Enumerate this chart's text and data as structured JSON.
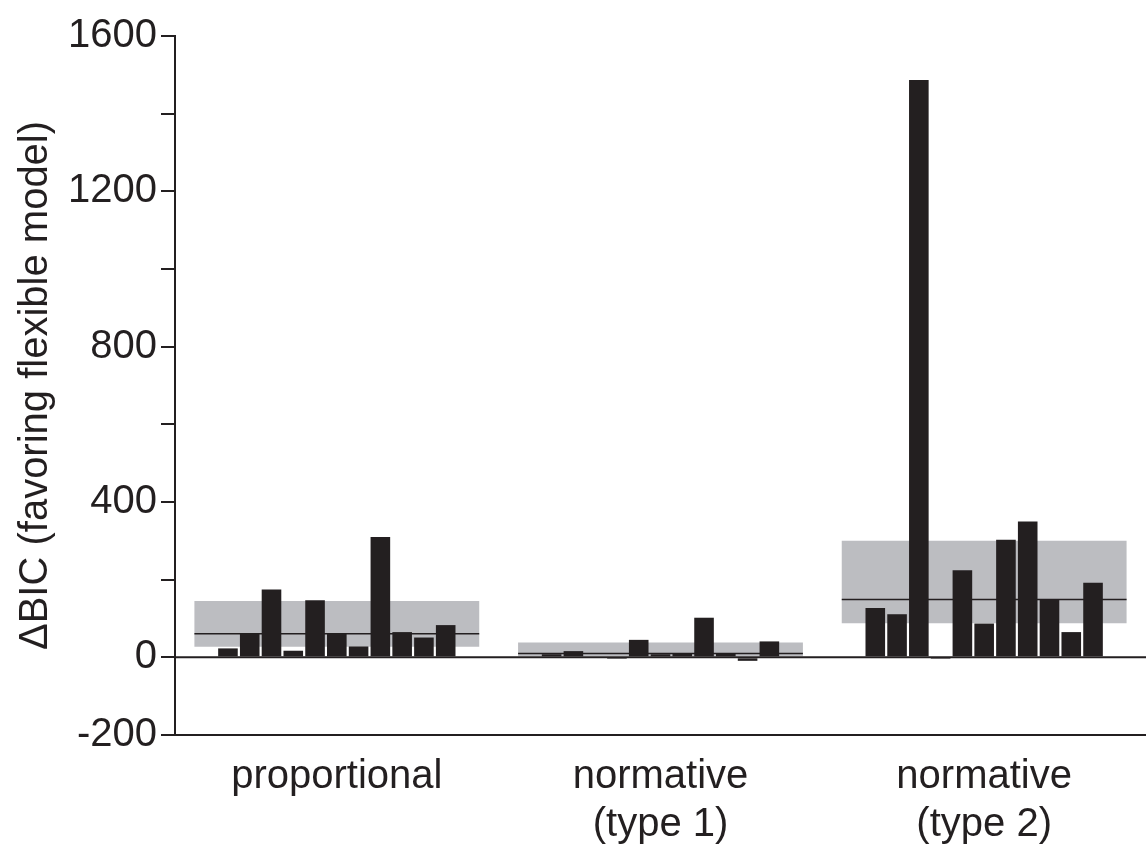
{
  "chart_data": {
    "type": "bar",
    "ylabel": "ΔBIC (favoring flexible model)",
    "categories": [
      "proportional",
      "normative\n(type 1)",
      "normative\n(type 2)"
    ],
    "series": [
      {
        "type": "box",
        "color": "#bcbdc1",
        "boxes": [
          {
            "low": 27,
            "q1": 27,
            "median": 61,
            "q3": 145,
            "high": 145
          },
          {
            "low": 3,
            "q1": 3,
            "median": 10,
            "q3": 38,
            "high": 38
          },
          {
            "low": 88,
            "q1": 88,
            "median": 149,
            "q3": 300,
            "high": 300
          }
        ]
      },
      {
        "color": "#231f20",
        "values": [
          23,
          8,
          127
        ]
      },
      {
        "color": "#231f20",
        "values": [
          62,
          16,
          111
        ]
      },
      {
        "color": "#231f20",
        "values": [
          175,
          null,
          1487
        ]
      },
      {
        "color": "#231f20",
        "values": [
          17,
          -4,
          -4
        ]
      },
      {
        "color": "#231f20",
        "values": [
          147,
          45,
          224
        ]
      },
      {
        "color": "#231f20",
        "values": [
          62,
          8,
          87
        ]
      },
      {
        "color": "#231f20",
        "values": [
          28,
          10,
          303
        ]
      },
      {
        "color": "#231f20",
        "values": [
          310,
          102,
          350
        ]
      },
      {
        "color": "#231f20",
        "values": [
          65,
          10,
          149
        ]
      },
      {
        "color": "#231f20",
        "values": [
          51,
          -9,
          65
        ]
      },
      {
        "color": "#231f20",
        "values": [
          83,
          41,
          192
        ]
      }
    ],
    "ylim": [
      -200,
      1600
    ],
    "yticks": [
      -200,
      {
        "value": 0,
        "label": "0"
      },
      {
        "value": 200,
        "label": null
      },
      400,
      {
        "value": 600,
        "label": null
      },
      800,
      {
        "value": 1000,
        "label": null
      },
      1200,
      {
        "value": 1400,
        "label": null
      },
      1600
    ],
    "ref_lines": [
      {
        "axis": "y",
        "value": 0,
        "color": "#231f20"
      }
    ],
    "grid": false,
    "legend": false
  }
}
